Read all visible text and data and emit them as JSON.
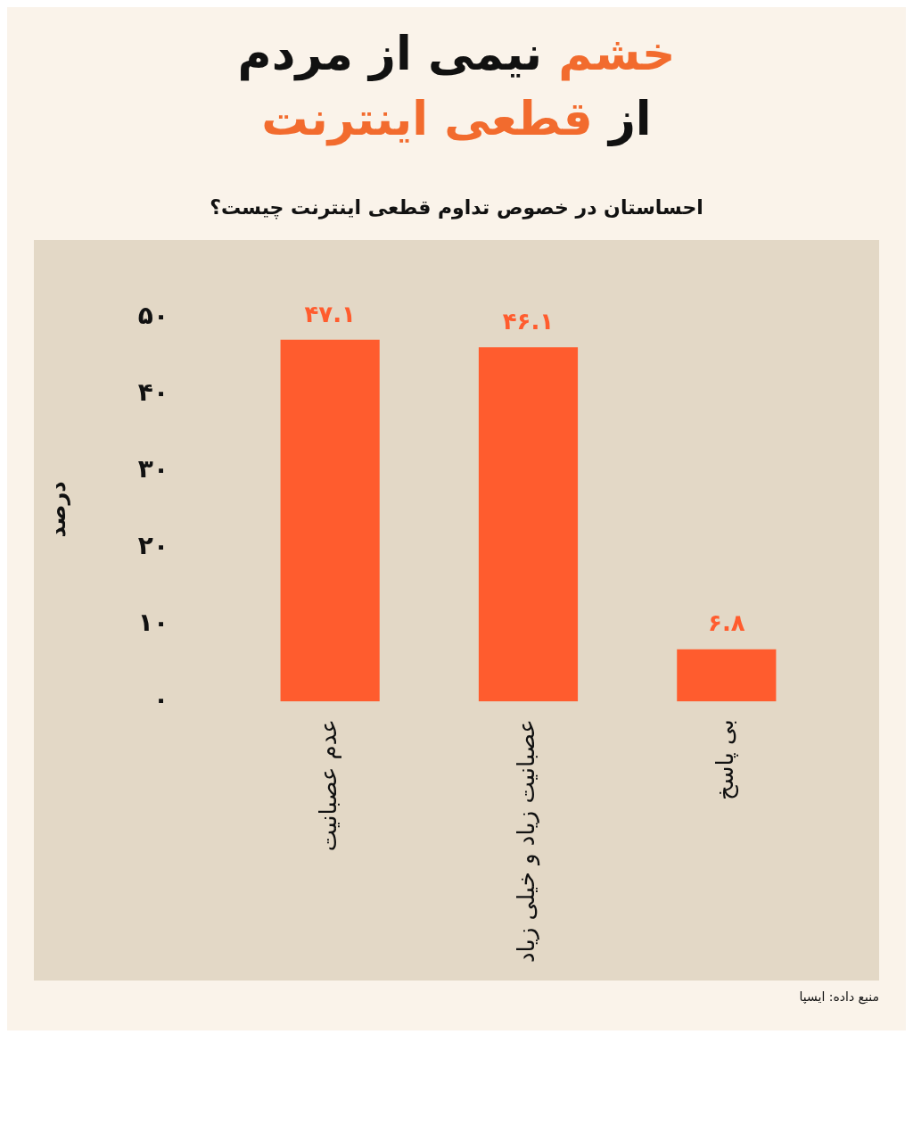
{
  "chart_data": {
    "type": "bar",
    "title": "خشم نیمی از مردم از قطعی اینترنت",
    "subtitle": "احساستان در خصوص تداوم قطعی اینترنت چیست؟",
    "ylabel": "درصد",
    "categories": [
      "عدم عصبانیت",
      "عصبانیت زیاد و خیلی زیاد",
      "بی پاسخ"
    ],
    "values": [
      47.1,
      46.1,
      6.8
    ],
    "value_labels": [
      "۴۷.۱",
      "۴۶.۱",
      "۶.۸"
    ],
    "color": "#ff5c2e",
    "ylim": [
      0,
      50
    ],
    "yticks": [
      {
        "value": 0,
        "label": "۰"
      },
      {
        "value": 10,
        "label": "۱۰"
      },
      {
        "value": 20,
        "label": "۲۰"
      },
      {
        "value": 30,
        "label": "۳۰"
      },
      {
        "value": 40,
        "label": "۴۰"
      },
      {
        "value": 50,
        "label": "۵۰"
      }
    ],
    "grid": false,
    "legend": false,
    "annotations": [
      "منبع داده: ایسپا"
    ]
  }
}
